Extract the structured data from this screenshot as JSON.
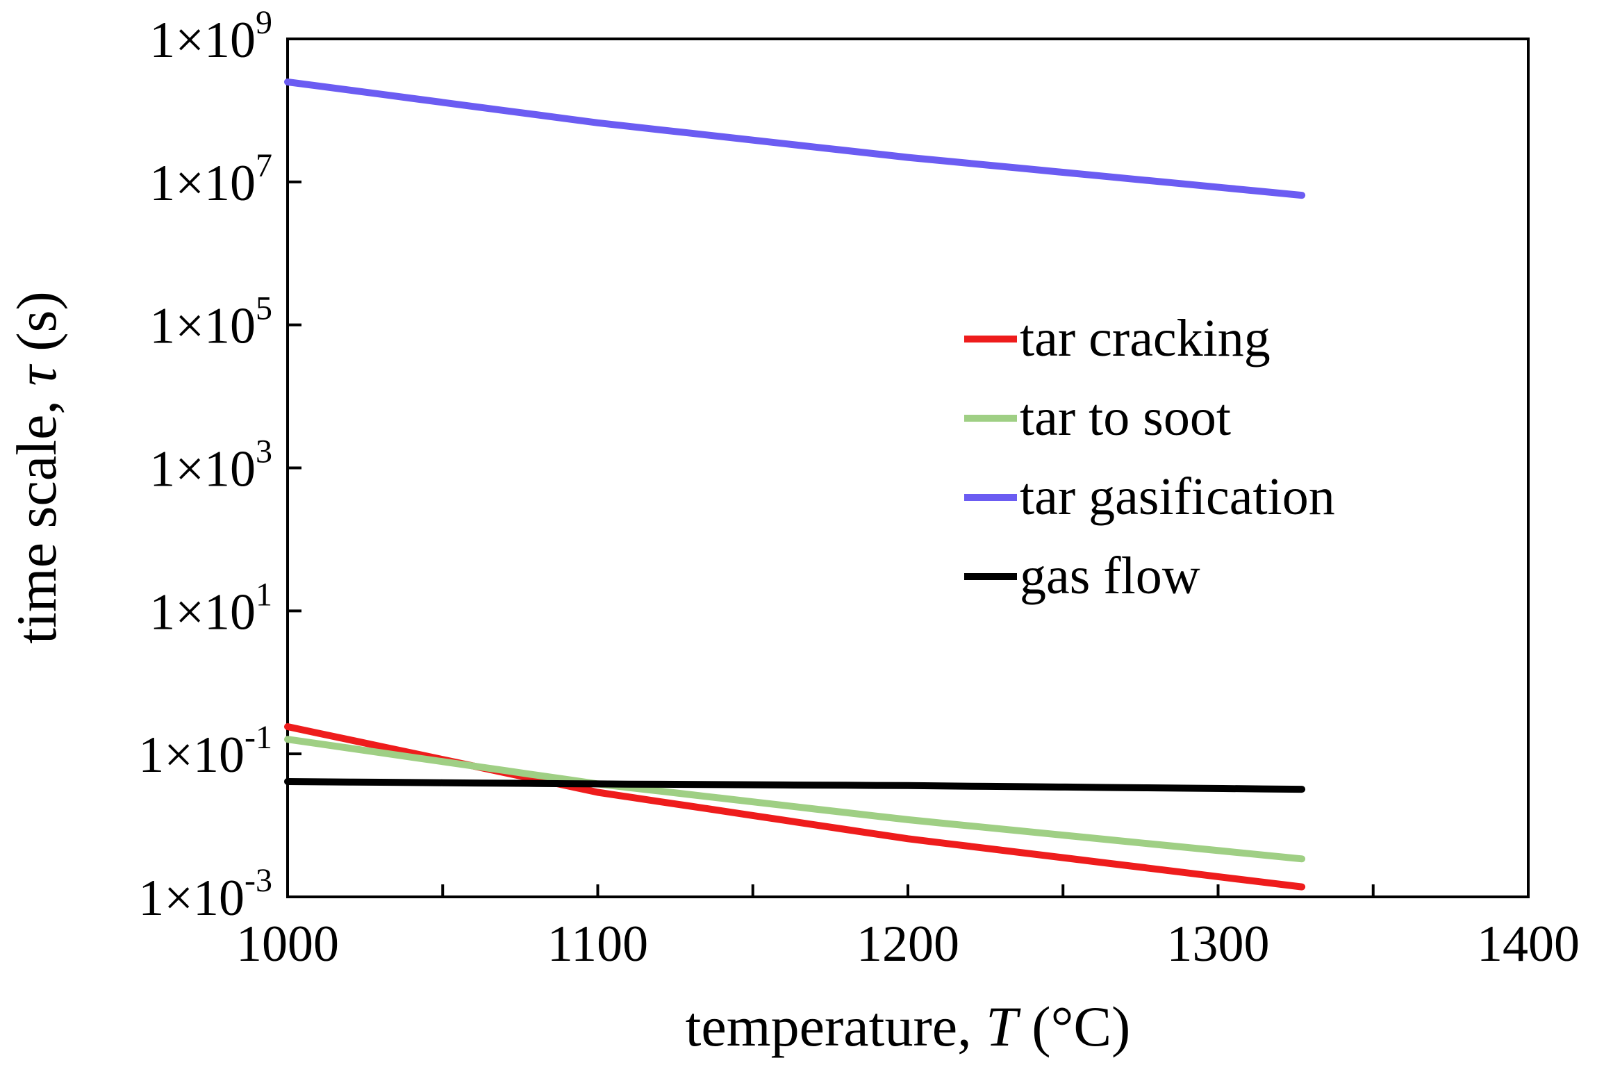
{
  "chart_data": {
    "type": "line",
    "xlabel_prefix": "temperature, ",
    "xlabel_var": "T",
    "xlabel_suffix": " (°C)",
    "ylabel_prefix": "time scale, ",
    "ylabel_var": "τ",
    "ylabel_suffix": " (s)",
    "xlim": [
      1000,
      1400
    ],
    "ylim": [
      0.001,
      1000000000
    ],
    "yscale": "log",
    "x_ticks": [
      "1000",
      "1100",
      "1200",
      "1300",
      "1400"
    ],
    "y_ticks": [
      {
        "base": "1×10",
        "exp": "9"
      },
      {
        "base": "1×10",
        "exp": "7"
      },
      {
        "base": "1×10",
        "exp": "5"
      },
      {
        "base": "1×10",
        "exp": "3"
      },
      {
        "base": "1×10",
        "exp": "1"
      },
      {
        "base": "1×10",
        "exp": "-1"
      },
      {
        "base": "1×10",
        "exp": "-3"
      }
    ],
    "legend_position": "center-right",
    "grid": false,
    "series": [
      {
        "name": "tar cracking",
        "color": "#ee1c1c",
        "x": [
          1000,
          1100,
          1200,
          1327
        ],
        "y": [
          0.24,
          0.029,
          0.0065,
          0.00138
        ]
      },
      {
        "name": "tar to soot",
        "color": "#9fcf84",
        "x": [
          1000,
          1100,
          1200,
          1327
        ],
        "y": [
          0.16,
          0.038,
          0.012,
          0.0034
        ]
      },
      {
        "name": "tar gasification",
        "color": "#6b5cf2",
        "x": [
          1000,
          1100,
          1200,
          1327
        ],
        "y": [
          250000000,
          67000000,
          22000000,
          6500000
        ]
      },
      {
        "name": "gas flow",
        "color": "#000000",
        "x": [
          1000,
          1100,
          1200,
          1327
        ],
        "y": [
          0.041,
          0.038,
          0.036,
          0.032
        ]
      }
    ]
  }
}
